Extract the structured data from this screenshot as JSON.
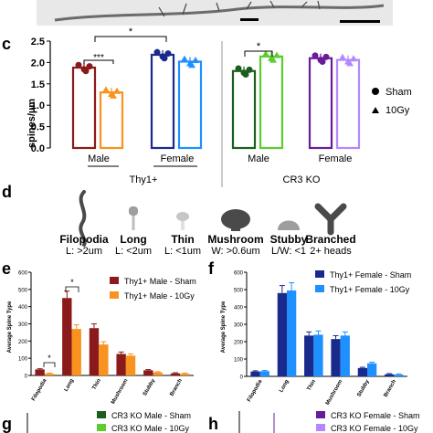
{
  "panel_letters": {
    "c": "c",
    "d": "d",
    "e": "e",
    "f": "f",
    "g": "g",
    "h": "h"
  },
  "colors": {
    "thy1_male_sham": "#8b1a1a",
    "thy1_male_10gy": "#f7931e",
    "thy1_female_sham": "#1a2a8c",
    "thy1_female_10gy": "#1e90ff",
    "cr3_male_sham": "#1b5e20",
    "cr3_male_10gy": "#5ccc2e",
    "cr3_female_sham": "#6a1b9a",
    "cr3_female_10gy": "#b388ff"
  },
  "panel_d": {
    "shapes": [
      {
        "name": "Filopodia",
        "sub": "L: >2um"
      },
      {
        "name": "Long",
        "sub": "L: <2um"
      },
      {
        "name": "Thin",
        "sub": "L: <1um"
      },
      {
        "name": "Mushroom",
        "sub": "W: >0.6um"
      },
      {
        "name": "Stubby",
        "sub": "L/W: <1"
      },
      {
        "name": "Branched",
        "sub": "2+ heads"
      }
    ]
  },
  "panel_g_legend": [
    "CR3 KO Male - Sham",
    "CR3 KO Male - 10Gy"
  ],
  "panel_h_legend": [
    "CR3 KO Female - Sham",
    "CR3 KO Female - 10Gy"
  ],
  "chart_data": [
    {
      "panel": "c",
      "type": "bar",
      "ylabel": "spines/µm",
      "ylim": [
        0,
        2.5
      ],
      "yticks": [
        "0.0",
        "0.5",
        "1.0",
        "1.5",
        "2.0",
        "2.5"
      ],
      "categories": [
        "Male",
        "Female",
        "Male",
        "Female"
      ],
      "groups": [
        "Thy1+",
        "CR3 KO"
      ],
      "legend": [
        "Sham",
        "10Gy"
      ],
      "series": [
        {
          "name": "Sham",
          "values": [
            1.88,
            2.18,
            1.8,
            2.1
          ]
        },
        {
          "name": "10Gy",
          "values": [
            1.3,
            2.02,
            2.14,
            2.06
          ]
        }
      ],
      "annotations": [
        "***",
        "*",
        "*"
      ]
    },
    {
      "panel": "e",
      "type": "bar",
      "ylabel": "Average Spine Type",
      "ylim": [
        0,
        600
      ],
      "yticks": [
        "0",
        "100",
        "200",
        "300",
        "400",
        "500",
        "600"
      ],
      "categories": [
        "Filopodia",
        "Long",
        "Thin",
        "Mushroom",
        "Stubby",
        "Branch"
      ],
      "series": [
        {
          "name": "Thy1+ Male - Sham",
          "values": [
            35,
            450,
            275,
            125,
            30,
            12
          ]
        },
        {
          "name": "Thy1+ Male - 10Gy",
          "values": [
            10,
            270,
            180,
            115,
            18,
            10
          ]
        }
      ],
      "annotations": [
        "*",
        "*"
      ]
    },
    {
      "panel": "f",
      "type": "bar",
      "ylabel": "Average Spine Type",
      "ylim": [
        0,
        600
      ],
      "yticks": [
        "0",
        "100",
        "200",
        "300",
        "400",
        "500",
        "600"
      ],
      "categories": [
        "Filopodia",
        "Long",
        "Thin",
        "Mushroom",
        "Stubby",
        "Branch"
      ],
      "series": [
        {
          "name": "Thy1+ Female - Sham",
          "values": [
            28,
            480,
            235,
            215,
            48,
            12
          ]
        },
        {
          "name": "Thy1+ Female - 10Gy",
          "values": [
            30,
            495,
            240,
            235,
            75,
            10
          ]
        }
      ]
    }
  ]
}
